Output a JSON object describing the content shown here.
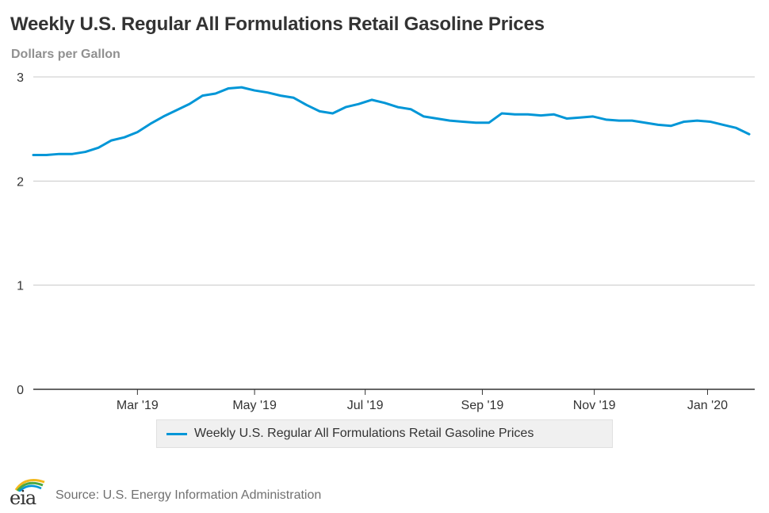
{
  "header": {
    "title": "Weekly U.S. Regular All Formulations Retail Gasoline Prices",
    "subtitle": "Dollars per Gallon"
  },
  "legend": {
    "label": "Weekly U.S. Regular All Formulations Retail Gasoline Prices"
  },
  "footer": {
    "logo_text": "eia",
    "source": "Source: U.S. Energy Information Administration"
  },
  "colors": {
    "series": "#0096d7",
    "grid": "#c8c8c8",
    "axis": "#333333",
    "tick_text": "#333333"
  },
  "chart_data": {
    "type": "line",
    "title": "Weekly U.S. Regular All Formulations Retail Gasoline Prices",
    "ylabel": "Dollars per Gallon",
    "xlabel": "",
    "ylim": [
      0,
      3
    ],
    "yticks": [
      0,
      1,
      2,
      3
    ],
    "grid": true,
    "legend_position": "bottom-center",
    "x_ticks": [
      {
        "label": "Mar '19",
        "week": 8
      },
      {
        "label": "May '19",
        "week": 17
      },
      {
        "label": "Jul '19",
        "week": 25.5
      },
      {
        "label": "Sep '19",
        "week": 34.5
      },
      {
        "label": "Nov '19",
        "week": 43.1
      },
      {
        "label": "Jan '20",
        "week": 51.8
      }
    ],
    "x_range": [
      0,
      55
    ],
    "series": [
      {
        "name": "Weekly U.S. Regular All Formulations Retail Gasoline Prices",
        "start_week": 0,
        "values": [
          2.25,
          2.25,
          2.26,
          2.26,
          2.28,
          2.32,
          2.39,
          2.42,
          2.47,
          2.55,
          2.62,
          2.68,
          2.74,
          2.82,
          2.84,
          2.89,
          2.9,
          2.87,
          2.85,
          2.82,
          2.8,
          2.73,
          2.67,
          2.65,
          2.71,
          2.74,
          2.78,
          2.75,
          2.71,
          2.69,
          2.62,
          2.6,
          2.58,
          2.57,
          2.56,
          2.56,
          2.65,
          2.64,
          2.64,
          2.63,
          2.64,
          2.6,
          2.61,
          2.62,
          2.59,
          2.58,
          2.58,
          2.56,
          2.54,
          2.53,
          2.57,
          2.58,
          2.57,
          2.54,
          2.51,
          2.45
        ]
      }
    ]
  }
}
